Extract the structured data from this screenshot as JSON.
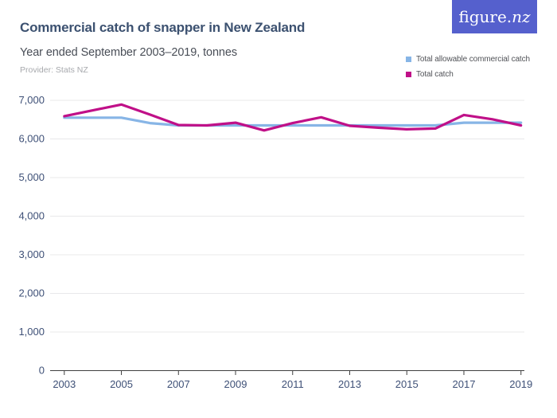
{
  "header": {
    "title": "Commercial catch of snapper in New Zealand",
    "subtitle": "Year ended September 2003–2019, tonnes",
    "provider": "Provider: Stats NZ",
    "logo_text_main": "figure.",
    "logo_text_accent": "nz",
    "logo_bg_color": "#5560cd"
  },
  "legend": {
    "items": [
      {
        "label": "Total allowable commercial catch",
        "color": "#87b5e6"
      },
      {
        "label": "Total catch",
        "color": "#c01088"
      }
    ]
  },
  "chart_data": {
    "type": "line",
    "title": "Commercial catch of snapper in New Zealand",
    "subtitle": "Year ended September 2003–2019, tonnes",
    "units": "tonnes",
    "xlabel": "",
    "ylabel": "",
    "x": [
      2003,
      2004,
      2005,
      2006,
      2007,
      2008,
      2009,
      2010,
      2011,
      2012,
      2013,
      2014,
      2015,
      2016,
      2017,
      2018,
      2019
    ],
    "series": [
      {
        "name": "Total allowable commercial catch",
        "color": "#87b5e6",
        "values": [
          6550,
          6550,
          6550,
          6410,
          6350,
          6350,
          6350,
          6350,
          6350,
          6350,
          6350,
          6350,
          6350,
          6350,
          6420,
          6420,
          6420
        ]
      },
      {
        "name": "Total catch",
        "color": "#c01088",
        "values": [
          6590,
          6740,
          6890,
          6630,
          6360,
          6350,
          6420,
          6220,
          6410,
          6560,
          6340,
          6290,
          6250,
          6270,
          6620,
          6510,
          6350
        ]
      }
    ],
    "xticks": [
      2003,
      2005,
      2007,
      2009,
      2011,
      2013,
      2015,
      2017,
      2019
    ],
    "yticks": [
      0,
      1000,
      2000,
      3000,
      4000,
      5000,
      6000,
      7000
    ],
    "ylim": [
      0,
      7000
    ],
    "grid": true,
    "legend_position": "top-right",
    "grid_color": "#e8e8ea",
    "axis_color": "#3f3f3f",
    "axis_label_color": "#3e5077"
  }
}
